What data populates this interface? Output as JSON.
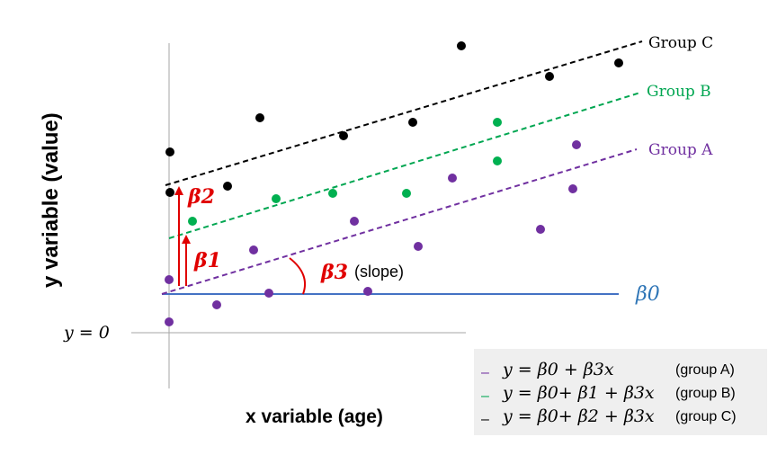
{
  "labels": {
    "y_axis": "y variable (value)",
    "x_axis": "x variable (age)",
    "y_zero": "y = 0",
    "beta0": "β0",
    "beta1": "β1",
    "beta2": "β2",
    "beta3": "β3",
    "slope_note": "(slope)"
  },
  "lines": [
    {
      "name": "Group C",
      "color": "#000000"
    },
    {
      "name": "Group B",
      "color": "#00a651"
    },
    {
      "name": "Group A",
      "color": "#7030a0"
    }
  ],
  "legend": [
    {
      "dash": "–",
      "color": "#7030a0",
      "equation": "y =  β0 + β3x",
      "group": "(group A)"
    },
    {
      "dash": "–",
      "color": "#00a651",
      "equation": "y =  β0+ β1 + β3x",
      "group": "(group B)"
    },
    {
      "dash": "–",
      "color": "#000000",
      "equation": "y =  β0+ β2 + β3x",
      "group": "(group C)"
    }
  ],
  "colors": {
    "baseline": "#4472c4",
    "beta0_text": "#2e75b6",
    "arrows": "#e00000",
    "axis": "#a6a6a6",
    "legend_bg": "#efefef"
  }
}
